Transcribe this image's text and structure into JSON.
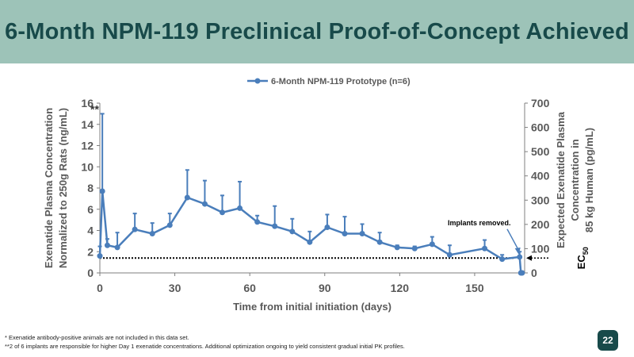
{
  "slide": {
    "title": "6-Month NPM-119 Preclinical Proof-of-Concept Achieved",
    "page_number": "22",
    "footnotes": [
      "*  Exenatide antibody-positive animals are not included in this data set.",
      "**2 of 6 implants are responsible for higher Day 1 exenatide concentrations.  Additional optimization ongoing to yield consistent gradual initial PK profiles."
    ]
  },
  "chart_data": {
    "type": "line",
    "legend": "6-Month NPM-119 Prototype (n=6)",
    "legend_position": "top",
    "xlabel": "Time from initial initiation (days)",
    "ylabel": "Exenatide Plasma Concentration Normalized to 250g Rats (ng/mL)",
    "ylabel_lines": [
      "Exenatide Plasma Concentration",
      "Normalized to 250g Rats (ng/mL)"
    ],
    "y2label_lines": [
      "Expected Exenatide Plasma",
      "Concentration in",
      "85 kg Human (pg/mL)"
    ],
    "xlim": [
      0,
      170
    ],
    "ylim": [
      0,
      16
    ],
    "y2lim": [
      0,
      700
    ],
    "x_ticks": [
      0,
      30,
      60,
      90,
      120,
      150
    ],
    "y_ticks": [
      0,
      2,
      4,
      6,
      8,
      10,
      12,
      14,
      16
    ],
    "y2_ticks": [
      0,
      100,
      200,
      300,
      400,
      500,
      600,
      700
    ],
    "series": [
      {
        "name": "6-Month NPM-119 Prototype (n=6)",
        "color": "#4a7ebb",
        "points": [
          {
            "x": 0,
            "y": 1.6,
            "err": 0.9
          },
          {
            "x": 1,
            "y": 7.7,
            "err": 7.3
          },
          {
            "x": 3,
            "y": 2.6,
            "err": 0.6
          },
          {
            "x": 7,
            "y": 2.4,
            "err": 1.4
          },
          {
            "x": 14,
            "y": 4.1,
            "err": 1.5
          },
          {
            "x": 21,
            "y": 3.7,
            "err": 1.0
          },
          {
            "x": 28,
            "y": 4.5,
            "err": 1.1
          },
          {
            "x": 35,
            "y": 7.1,
            "err": 2.6
          },
          {
            "x": 42,
            "y": 6.5,
            "err": 2.2
          },
          {
            "x": 49,
            "y": 5.7,
            "err": 1.6
          },
          {
            "x": 56,
            "y": 6.1,
            "err": 2.5
          },
          {
            "x": 63,
            "y": 4.8,
            "err": 0.6
          },
          {
            "x": 70,
            "y": 4.4,
            "err": 1.9
          },
          {
            "x": 77,
            "y": 3.9,
            "err": 1.2
          },
          {
            "x": 84,
            "y": 2.9,
            "err": 1.0
          },
          {
            "x": 91,
            "y": 4.3,
            "err": 1.2
          },
          {
            "x": 98,
            "y": 3.7,
            "err": 1.6
          },
          {
            "x": 105,
            "y": 3.7,
            "err": 0.9
          },
          {
            "x": 112,
            "y": 2.9,
            "err": 0.9
          },
          {
            "x": 119,
            "y": 2.4,
            "err": 0.2
          },
          {
            "x": 126,
            "y": 2.3,
            "err": 0.2
          },
          {
            "x": 133,
            "y": 2.7,
            "err": 0.7
          },
          {
            "x": 140,
            "y": 1.7,
            "err": 0.9
          },
          {
            "x": 154,
            "y": 2.3,
            "err": 0.8
          },
          {
            "x": 161,
            "y": 1.3,
            "err": 0.4
          },
          {
            "x": 168,
            "y": 1.5,
            "err": 0.5
          },
          {
            "x": 168.5,
            "y": 0.0,
            "err": 0
          },
          {
            "x": 169,
            "y": 0.0,
            "err": 0
          }
        ]
      }
    ],
    "ec50": {
      "y": 1.4,
      "label": "EC",
      "label_sub": "50",
      "style": "dotted"
    },
    "annotations": [
      {
        "text": "**",
        "x": 0,
        "y": 15.5
      },
      {
        "text": "Implants removed.",
        "x": 168,
        "y": 4.5
      }
    ]
  }
}
